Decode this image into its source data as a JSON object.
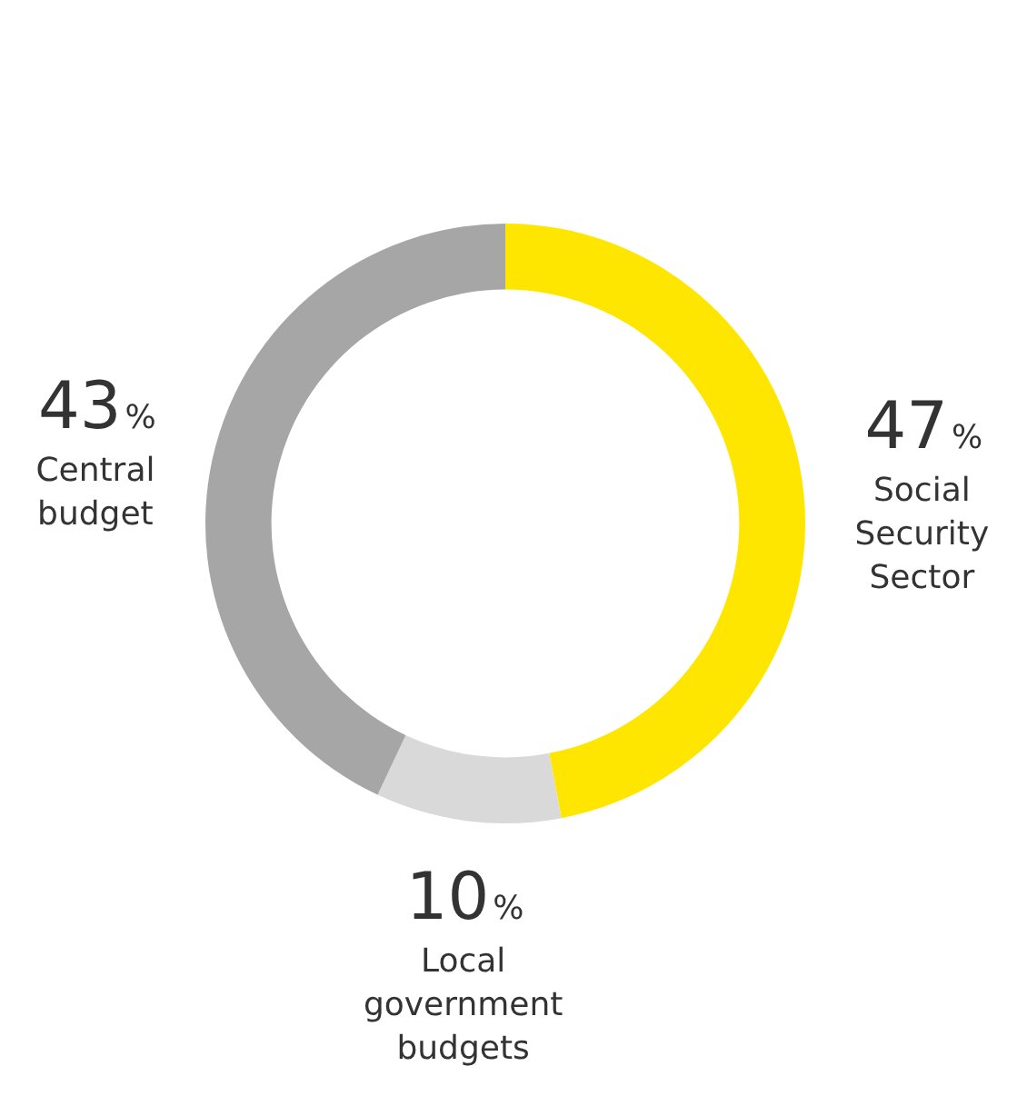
{
  "chart_data": {
    "type": "donut",
    "categories": [
      "Social Security Sector",
      "Local government budgets",
      "Central budget"
    ],
    "values": [
      47,
      10,
      43
    ],
    "colors": [
      "#ffe600",
      "#d9d9d9",
      "#a6a6a6"
    ],
    "value_labels": [
      "47%",
      "10%",
      "43%"
    ],
    "legend": false
  }
}
